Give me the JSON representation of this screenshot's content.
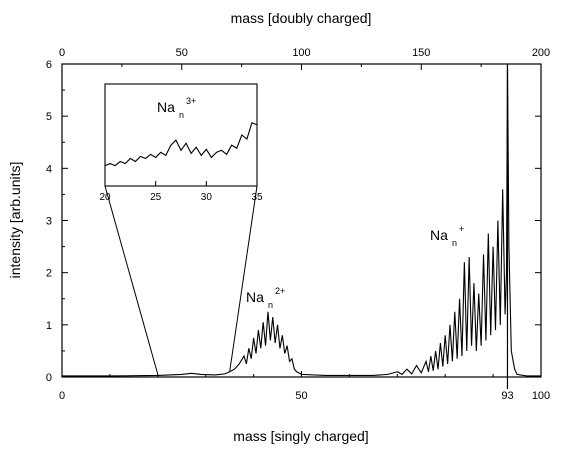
{
  "chart_data": {
    "type": "line",
    "xlabel": "mass [singly charged]",
    "x2label": "mass [doubly charged]",
    "ylabel": "intensity [arb.units]",
    "xlim": [
      0,
      100
    ],
    "x2lim": [
      0,
      200
    ],
    "ylim": [
      0,
      6
    ],
    "grid": false,
    "xticks": [
      {
        "value": 0,
        "label": "0"
      },
      {
        "value": 50,
        "label": "50"
      },
      {
        "value": 93,
        "label": "93"
      },
      {
        "value": 100,
        "label": "100"
      }
    ],
    "x2ticks": [
      {
        "value": 0,
        "label": "0"
      },
      {
        "value": 50,
        "label": "50"
      },
      {
        "value": 100,
        "label": "100"
      },
      {
        "value": 150,
        "label": "150"
      },
      {
        "value": 200,
        "label": "200"
      }
    ],
    "yticks": [
      {
        "value": 0,
        "label": "0"
      },
      {
        "value": 1,
        "label": "1"
      },
      {
        "value": 2,
        "label": "2"
      },
      {
        "value": 3,
        "label": "3"
      },
      {
        "value": 4,
        "label": "4"
      },
      {
        "value": 5,
        "label": "5"
      },
      {
        "value": 6,
        "label": "6"
      }
    ],
    "marker_line": {
      "x": 93
    },
    "series": [
      {
        "points": [
          [
            0,
            0.02
          ],
          [
            10,
            0.02
          ],
          [
            20,
            0.03
          ],
          [
            25,
            0.05
          ],
          [
            27,
            0.07
          ],
          [
            29,
            0.05
          ],
          [
            32,
            0.04
          ],
          [
            34,
            0.06
          ],
          [
            35,
            0.1
          ],
          [
            36,
            0.15
          ],
          [
            37,
            0.25
          ],
          [
            38,
            0.4
          ],
          [
            38.5,
            0.25
          ],
          [
            39,
            0.55
          ],
          [
            39.5,
            0.35
          ],
          [
            40,
            0.75
          ],
          [
            40.5,
            0.45
          ],
          [
            41,
            0.9
          ],
          [
            41.5,
            0.55
          ],
          [
            42,
            1.05
          ],
          [
            42.5,
            0.6
          ],
          [
            43,
            1.25
          ],
          [
            43.5,
            0.7
          ],
          [
            44,
            1.15
          ],
          [
            44.5,
            0.65
          ],
          [
            45,
            1.0
          ],
          [
            45.5,
            0.55
          ],
          [
            46,
            0.8
          ],
          [
            46.5,
            0.45
          ],
          [
            47,
            0.6
          ],
          [
            47.5,
            0.3
          ],
          [
            48,
            0.35
          ],
          [
            48.5,
            0.15
          ],
          [
            49,
            0.1
          ],
          [
            50,
            0.05
          ],
          [
            55,
            0.03
          ],
          [
            60,
            0.03
          ],
          [
            65,
            0.03
          ],
          [
            68,
            0.05
          ],
          [
            70,
            0.1
          ],
          [
            71,
            0.05
          ],
          [
            72,
            0.15
          ],
          [
            73,
            0.06
          ],
          [
            74,
            0.22
          ],
          [
            75,
            0.08
          ],
          [
            76,
            0.3
          ],
          [
            76.5,
            0.1
          ],
          [
            77,
            0.4
          ],
          [
            77.5,
            0.12
          ],
          [
            78,
            0.5
          ],
          [
            78.5,
            0.15
          ],
          [
            79,
            0.65
          ],
          [
            79.5,
            0.2
          ],
          [
            80,
            0.8
          ],
          [
            80.5,
            0.25
          ],
          [
            81,
            1.0
          ],
          [
            81.5,
            0.3
          ],
          [
            82,
            1.25
          ],
          [
            82.5,
            0.35
          ],
          [
            83,
            1.5
          ],
          [
            83.5,
            0.4
          ],
          [
            84,
            2.2
          ],
          [
            84.5,
            0.5
          ],
          [
            85,
            2.3
          ],
          [
            85.5,
            0.6
          ],
          [
            86,
            1.8
          ],
          [
            86.5,
            0.5
          ],
          [
            87,
            1.6
          ],
          [
            87.5,
            0.6
          ],
          [
            88,
            2.35
          ],
          [
            88.5,
            0.7
          ],
          [
            89,
            2.75
          ],
          [
            89.5,
            0.8
          ],
          [
            90,
            2.5
          ],
          [
            90.5,
            0.9
          ],
          [
            91,
            3.0
          ],
          [
            91.5,
            1.0
          ],
          [
            92,
            3.6
          ],
          [
            92.5,
            1.2
          ],
          [
            92.8,
            2.0
          ],
          [
            93,
            6.0
          ],
          [
            93.3,
            2.5
          ],
          [
            93.8,
            0.5
          ],
          [
            94.5,
            0.15
          ],
          [
            95,
            0.05
          ],
          [
            97,
            0.02
          ],
          [
            100,
            0.02
          ]
        ]
      }
    ],
    "inset": {
      "xlim": [
        20,
        35
      ],
      "ylim": [
        0,
        1
      ],
      "xticks": [
        {
          "value": 20,
          "label": "20"
        },
        {
          "value": 25,
          "label": "25"
        },
        {
          "value": 30,
          "label": "30"
        },
        {
          "value": 35,
          "label": "35"
        }
      ],
      "zoom_region_x": [
        20,
        35
      ],
      "series_points": [
        [
          20,
          0.2
        ],
        [
          20.5,
          0.22
        ],
        [
          21,
          0.2
        ],
        [
          21.5,
          0.24
        ],
        [
          22,
          0.22
        ],
        [
          22.5,
          0.27
        ],
        [
          23,
          0.24
        ],
        [
          23.5,
          0.29
        ],
        [
          24,
          0.27
        ],
        [
          24.5,
          0.31
        ],
        [
          25,
          0.28
        ],
        [
          25.5,
          0.33
        ],
        [
          26,
          0.3
        ],
        [
          26.5,
          0.4
        ],
        [
          27,
          0.45
        ],
        [
          27.5,
          0.35
        ],
        [
          28,
          0.42
        ],
        [
          28.5,
          0.32
        ],
        [
          29,
          0.38
        ],
        [
          29.5,
          0.3
        ],
        [
          30,
          0.36
        ],
        [
          30.5,
          0.28
        ],
        [
          31,
          0.33
        ],
        [
          31.5,
          0.35
        ],
        [
          32,
          0.31
        ],
        [
          32.5,
          0.4
        ],
        [
          33,
          0.37
        ],
        [
          33.5,
          0.5
        ],
        [
          34,
          0.46
        ],
        [
          34.5,
          0.62
        ],
        [
          35,
          0.6
        ]
      ]
    },
    "annotations": [
      {
        "text": "Na",
        "sub": "n",
        "sup": "3+"
      },
      {
        "text": "Na",
        "sub": "n",
        "sup": "2+"
      },
      {
        "text": "Na",
        "sub": "n",
        "sup": "+"
      }
    ]
  }
}
